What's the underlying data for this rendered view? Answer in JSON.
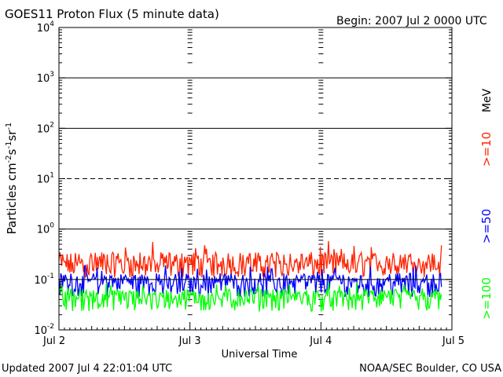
{
  "chart_data": {
    "type": "line",
    "title": "GOES11 Proton Flux (5 minute data)",
    "begin_label": "Begin: 2007 Jul 2 0000 UTC",
    "xlabel": "Universal Time",
    "ylabel_base": "Particles cm",
    "ylabel_sup1": "-2",
    "ylabel_mid1": "s",
    "ylabel_sup2": "-1",
    "ylabel_mid2": "sr",
    "ylabel_sup3": "-1",
    "y_scale": "log",
    "ylim": [
      0.01,
      10000
    ],
    "y_tick_labels": [
      {
        "base": "10",
        "exp": "-2",
        "value": 0.01
      },
      {
        "base": "10",
        "exp": "-1",
        "value": 0.1
      },
      {
        "base": "10",
        "exp": "0",
        "value": 1
      },
      {
        "base": "10",
        "exp": "1",
        "value": 10
      },
      {
        "base": "10",
        "exp": "2",
        "value": 100
      },
      {
        "base": "10",
        "exp": "3",
        "value": 1000
      },
      {
        "base": "10",
        "exp": "4",
        "value": 10000
      }
    ],
    "x_tick_labels": [
      {
        "label": "Jul 2",
        "day": 0
      },
      {
        "label": "Jul 3",
        "day": 1
      },
      {
        "label": "Jul 4",
        "day": 2
      },
      {
        "label": "Jul 5",
        "day": 3
      }
    ],
    "xlim_days": [
      0,
      3
    ],
    "data_end_day": 2.92,
    "solid_grid_values": [
      1,
      100,
      1000
    ],
    "dashed_grid_values": [
      10
    ],
    "threshold_line_value": 0.1,
    "legend_unit": "MeV",
    "series": [
      {
        "name": ">=10",
        "color": "#ff2200",
        "typical": 0.2,
        "low": 0.11,
        "high": 0.6
      },
      {
        "name": ">=50",
        "color": "#0000ff",
        "typical": 0.09,
        "low": 0.045,
        "high": 0.2
      },
      {
        "name": ">=100",
        "color": "#00ff00",
        "typical": 0.045,
        "low": 0.023,
        "high": 0.09
      }
    ]
  },
  "footer": {
    "updated": "Updated 2007 Jul  4 22:01:04 UTC",
    "source": "NOAA/SEC Boulder, CO USA"
  }
}
